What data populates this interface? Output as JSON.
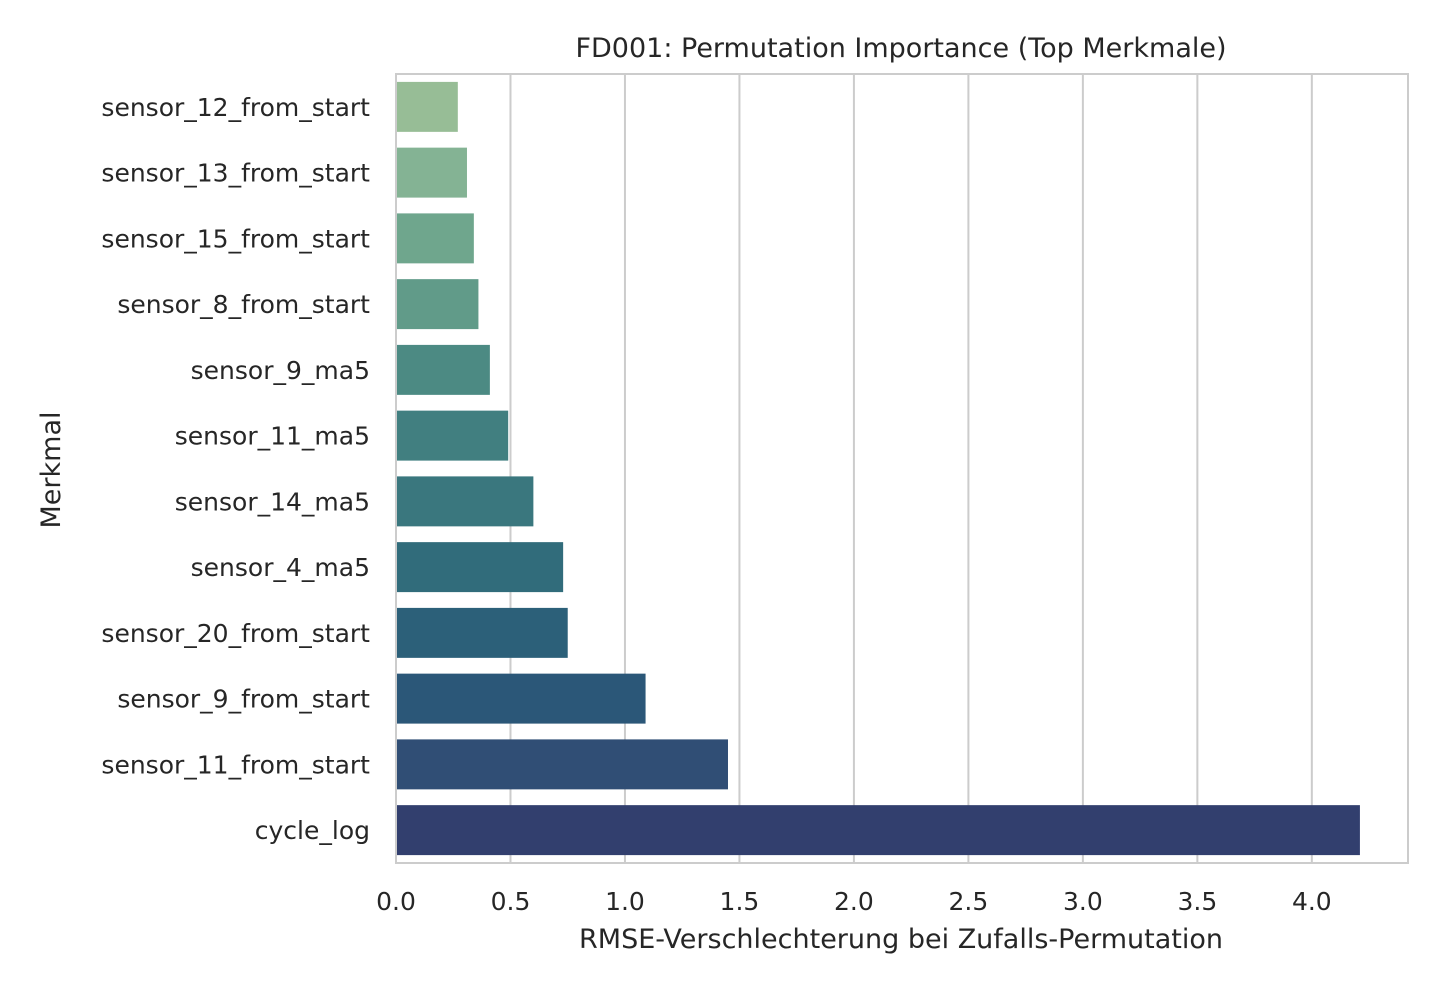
{
  "chart_data": {
    "type": "bar",
    "orientation": "horizontal",
    "title": "FD001: Permutation Importance (Top Merkmale)",
    "xlabel": "RMSE-Verschlechterung bei Zufalls-Permutation",
    "ylabel": "Merkmal",
    "xlim": [
      0,
      4.42
    ],
    "xticks": [
      "0.0",
      "0.5",
      "1.0",
      "1.5",
      "2.0",
      "2.5",
      "3.0",
      "3.5",
      "4.0"
    ],
    "grid": "vertical",
    "categories": [
      "sensor_12_from_start",
      "sensor_13_from_start",
      "sensor_15_from_start",
      "sensor_8_from_start",
      "sensor_9_ma5",
      "sensor_11_ma5",
      "sensor_14_ma5",
      "sensor_4_ma5",
      "sensor_20_from_start",
      "sensor_9_from_start",
      "sensor_11_from_start",
      "cycle_log"
    ],
    "values": [
      0.27,
      0.31,
      0.34,
      0.36,
      0.41,
      0.49,
      0.6,
      0.73,
      0.75,
      1.09,
      1.45,
      4.21
    ],
    "colors": [
      "#97bd96",
      "#84b394",
      "#6fa68d",
      "#619b89",
      "#4c8a83",
      "#417f80",
      "#3a777e",
      "#316c7b",
      "#2c6079",
      "#2b5778",
      "#304e75",
      "#323f6e"
    ]
  }
}
